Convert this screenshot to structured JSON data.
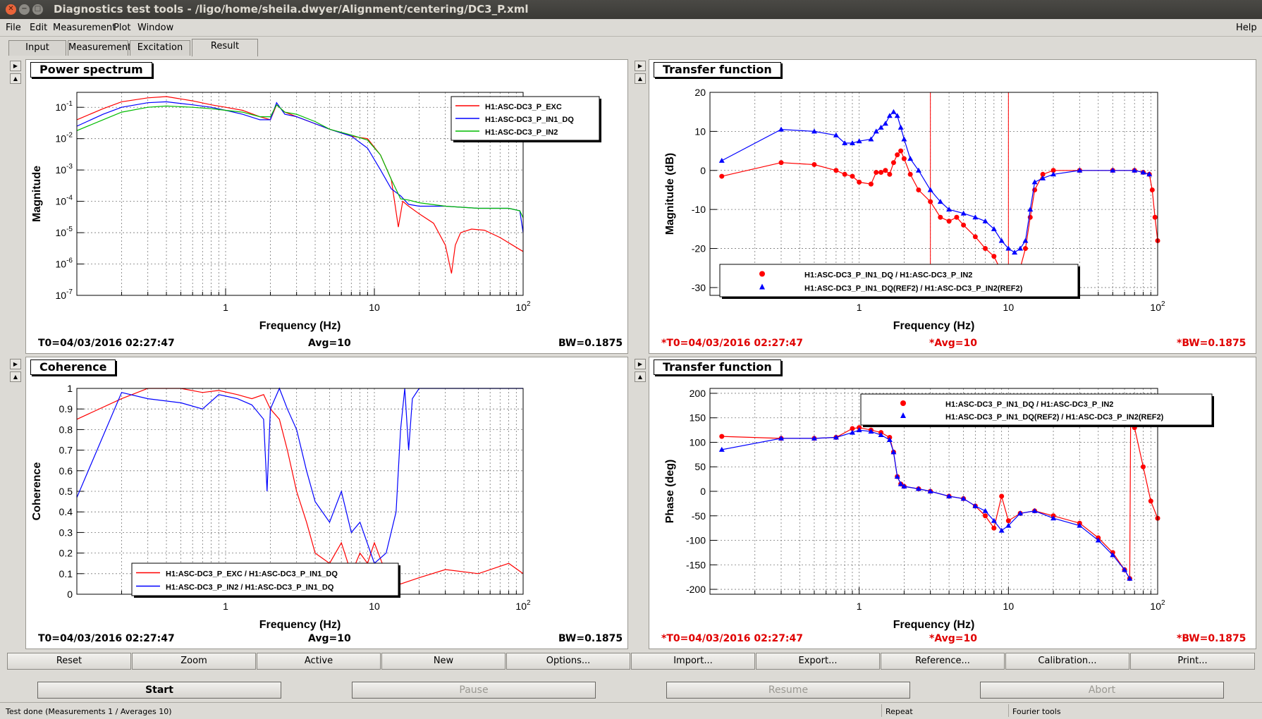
{
  "window": {
    "title": "Diagnostics test tools - /ligo/home/sheila.dwyer/Alignment/centering/DC3_P.xml"
  },
  "menu": {
    "file": "File",
    "edit": "Edit",
    "measurement": "Measurement",
    "plot": "Plot",
    "window": "Window",
    "help": "Help"
  },
  "tabs": [
    {
      "label": "Input",
      "active": false
    },
    {
      "label": "Measurement",
      "active": false
    },
    {
      "label": "Excitation",
      "active": false
    },
    {
      "label": "Result",
      "active": true
    }
  ],
  "panels": {
    "tl": {
      "title": "Power spectrum",
      "foot_t0": "T0=04/03/2016 02:27:47",
      "foot_avg": "Avg=10",
      "foot_bw": "BW=0.1875"
    },
    "tr": {
      "title": "Transfer function",
      "foot_t0": "*T0=04/03/2016 02:27:47",
      "foot_avg": "*Avg=10",
      "foot_bw": "*BW=0.1875"
    },
    "bl": {
      "title": "Coherence",
      "foot_t0": "T0=04/03/2016 02:27:47",
      "foot_avg": "Avg=10",
      "foot_bw": "BW=0.1875"
    },
    "br": {
      "title": "Transfer function",
      "foot_t0": "*T0=04/03/2016 02:27:47",
      "foot_avg": "*Avg=10",
      "foot_bw": "*BW=0.1875"
    }
  },
  "chart_data": [
    {
      "id": "tl",
      "type": "line",
      "xscale": "log",
      "yscale": "log",
      "xlim": [
        0.1,
        100
      ],
      "ylim": [
        1e-07,
        0.3
      ],
      "xlabel": "Frequency (Hz)",
      "ylabel": "Magnitude",
      "xtick_labels": [
        [
          "1",
          1
        ],
        [
          "10",
          10
        ],
        [
          "10^2",
          100
        ]
      ],
      "ytick_labels": [
        [
          "10^-7",
          1e-07
        ],
        [
          "10^-6",
          1e-06
        ],
        [
          "10^-5",
          1e-05
        ],
        [
          "10^-4",
          0.0001
        ],
        [
          "10^-3",
          0.001
        ],
        [
          "10^-2",
          0.01
        ],
        [
          "10^-1",
          0.1
        ]
      ],
      "legend": "top-right",
      "grid": true,
      "series": [
        {
          "name": "H1:ASC-DC3_P_EXC",
          "color": "#ff0000",
          "x": [
            0.1,
            0.15,
            0.2,
            0.3,
            0.4,
            0.6,
            0.8,
            1,
            1.3,
            1.7,
            2,
            2.2,
            2.5,
            3,
            4,
            5,
            7,
            9,
            11,
            13,
            14.5,
            15.5,
            17,
            20,
            25,
            30,
            33,
            35,
            38,
            45,
            55,
            70,
            85,
            100
          ],
          "y": [
            0.04,
            0.09,
            0.15,
            0.2,
            0.22,
            0.16,
            0.12,
            0.1,
            0.08,
            0.05,
            0.04,
            0.12,
            0.07,
            0.05,
            0.03,
            0.02,
            0.012,
            0.01,
            0.003,
            0.0005,
            1.5e-05,
            0.0001,
            7e-05,
            4e-05,
            2e-05,
            4e-06,
            5e-07,
            4e-06,
            1e-05,
            1.3e-05,
            1.2e-05,
            7e-06,
            4e-06,
            2.5e-06
          ]
        },
        {
          "name": "H1:ASC-DC3_P_IN1_DQ",
          "color": "#0000ff",
          "x": [
            0.1,
            0.15,
            0.2,
            0.3,
            0.4,
            0.6,
            0.8,
            1,
            1.3,
            1.7,
            2,
            2.2,
            2.5,
            3,
            4,
            5,
            7,
            9,
            11,
            13,
            15,
            17,
            20,
            30,
            50,
            80,
            95,
            100
          ],
          "y": [
            0.025,
            0.06,
            0.1,
            0.14,
            0.15,
            0.12,
            0.1,
            0.08,
            0.06,
            0.04,
            0.04,
            0.14,
            0.06,
            0.05,
            0.03,
            0.02,
            0.012,
            0.005,
            0.001,
            0.00025,
            0.00015,
            8e-05,
            7e-05,
            7e-05,
            6e-05,
            6e-05,
            5e-05,
            1e-05
          ]
        },
        {
          "name": "H1:ASC-DC3_P_IN2",
          "color": "#00bb00",
          "x": [
            0.1,
            0.15,
            0.2,
            0.3,
            0.4,
            0.6,
            0.8,
            1,
            1.3,
            1.7,
            2,
            2.2,
            2.5,
            3,
            4,
            5,
            7,
            9,
            11,
            13,
            15,
            17,
            20,
            30,
            50,
            80,
            95,
            100
          ],
          "y": [
            0.018,
            0.04,
            0.07,
            0.1,
            0.11,
            0.1,
            0.09,
            0.08,
            0.07,
            0.05,
            0.05,
            0.12,
            0.07,
            0.06,
            0.035,
            0.02,
            0.013,
            0.009,
            0.003,
            0.0005,
            0.00012,
            0.00011,
            9e-05,
            7e-05,
            6e-05,
            6e-05,
            5e-05,
            3e-05
          ]
        }
      ]
    },
    {
      "id": "tr",
      "type": "scatter",
      "xscale": "log",
      "yscale": "linear",
      "xlim": [
        0.1,
        100
      ],
      "ylim": [
        -32,
        20
      ],
      "xlabel": "Frequency (Hz)",
      "ylabel": "Magnitude (dB)",
      "xtick_labels": [
        [
          "1",
          1
        ],
        [
          "10",
          10
        ],
        [
          "10^2",
          100
        ]
      ],
      "ytick_labels": [
        [
          "20",
          20
        ],
        [
          "10",
          10
        ],
        [
          "0",
          0
        ],
        [
          "-10",
          -10
        ],
        [
          "-20",
          -20
        ],
        [
          "-30",
          -30
        ]
      ],
      "vlines": [
        3,
        10
      ],
      "legend": "bottom-center",
      "grid": true,
      "series": [
        {
          "name": "H1:ASC-DC3_P_IN1_DQ / H1:ASC-DC3_P_IN2",
          "color": "#ff0000",
          "marker": "circle",
          "x": [
            0.12,
            0.3,
            0.5,
            0.7,
            0.8,
            0.9,
            1.0,
            1.2,
            1.3,
            1.4,
            1.5,
            1.6,
            1.7,
            1.8,
            1.9,
            2.0,
            2.2,
            2.5,
            3.0,
            3.5,
            4.0,
            4.5,
            5,
            6,
            7,
            8,
            9,
            10,
            11,
            12,
            13,
            14,
            15,
            17,
            20,
            30,
            50,
            70,
            80,
            88,
            92,
            96,
            100
          ],
          "y": [
            -1.5,
            2,
            1.5,
            0,
            -1,
            -1.5,
            -3,
            -3.5,
            -0.5,
            -0.5,
            0,
            -1,
            2,
            4,
            5,
            3,
            -1,
            -5,
            -8,
            -12,
            -13,
            -12,
            -14,
            -17,
            -20,
            -22,
            -26,
            -27,
            -26,
            -25,
            -20,
            -12,
            -5,
            -1,
            0,
            0,
            0,
            0,
            -0.5,
            -1,
            -5,
            -12,
            -18
          ]
        },
        {
          "name": "H1:ASC-DC3_P_IN1_DQ(REF2) / H1:ASC-DC3_P_IN2(REF2)",
          "color": "#0000ff",
          "marker": "triangle",
          "x": [
            0.12,
            0.3,
            0.5,
            0.7,
            0.8,
            0.9,
            1.0,
            1.2,
            1.3,
            1.4,
            1.5,
            1.6,
            1.7,
            1.8,
            1.9,
            2.0,
            2.2,
            2.5,
            3.0,
            3.5,
            4.0,
            5,
            6,
            7,
            8,
            9,
            10,
            11,
            12,
            13,
            14,
            15,
            17,
            20,
            30,
            50,
            70,
            80,
            88
          ],
          "y": [
            2.5,
            10.5,
            10,
            9,
            7,
            7,
            7.5,
            8,
            10,
            11,
            12,
            14,
            15,
            14,
            11,
            8,
            3,
            0,
            -5,
            -8,
            -10,
            -11,
            -12,
            -13,
            -15,
            -18,
            -20,
            -21,
            -20,
            -18,
            -10,
            -3,
            -2,
            -1,
            0,
            0,
            0,
            -0.5,
            -1
          ]
        }
      ]
    },
    {
      "id": "bl",
      "type": "line",
      "xscale": "log",
      "yscale": "linear",
      "xlim": [
        0.1,
        100
      ],
      "ylim": [
        0,
        1
      ],
      "xlabel": "Frequency (Hz)",
      "ylabel": "Coherence",
      "xtick_labels": [
        [
          "1",
          1
        ],
        [
          "10",
          10
        ],
        [
          "10^2",
          100
        ]
      ],
      "ytick_labels": [
        [
          "0",
          0
        ],
        [
          "0.1",
          0.1
        ],
        [
          "0.2",
          0.2
        ],
        [
          "0.3",
          0.3
        ],
        [
          "0.4",
          0.4
        ],
        [
          "0.5",
          0.5
        ],
        [
          "0.6",
          0.6
        ],
        [
          "0.7",
          0.7
        ],
        [
          "0.8",
          0.8
        ],
        [
          "0.9",
          0.9
        ],
        [
          "1",
          1
        ]
      ],
      "legend": "bottom-center",
      "grid": true,
      "series": [
        {
          "name": "H1:ASC-DC3_P_EXC / H1:ASC-DC3_P_IN1_DQ",
          "color": "#ff0000",
          "x": [
            0.1,
            0.2,
            0.3,
            0.5,
            0.7,
            0.9,
            1.2,
            1.5,
            1.8,
            2.0,
            2.3,
            2.6,
            3.0,
            3.5,
            4,
            5,
            6,
            7,
            8,
            9,
            10,
            12,
            15,
            20,
            30,
            50,
            80,
            100
          ],
          "y": [
            0.85,
            0.95,
            1.0,
            1.0,
            0.98,
            0.99,
            0.97,
            0.95,
            0.97,
            0.9,
            0.85,
            0.7,
            0.5,
            0.35,
            0.2,
            0.15,
            0.25,
            0.1,
            0.2,
            0.15,
            0.25,
            0.1,
            0.05,
            0.08,
            0.12,
            0.1,
            0.15,
            0.1
          ]
        },
        {
          "name": "H1:ASC-DC3_P_IN2 / H1:ASC-DC3_P_IN1_DQ",
          "color": "#0000ff",
          "x": [
            0.1,
            0.2,
            0.3,
            0.5,
            0.7,
            0.9,
            1.2,
            1.5,
            1.8,
            1.9,
            2.0,
            2.3,
            2.6,
            3.0,
            3.5,
            4,
            5,
            6,
            7,
            8,
            10,
            12,
            14,
            15,
            16,
            17,
            18,
            20,
            25,
            30,
            50,
            80,
            100
          ],
          "y": [
            0.47,
            0.98,
            0.95,
            0.93,
            0.9,
            0.97,
            0.95,
            0.92,
            0.85,
            0.5,
            0.9,
            1.0,
            0.9,
            0.8,
            0.6,
            0.45,
            0.35,
            0.5,
            0.3,
            0.35,
            0.15,
            0.2,
            0.4,
            0.8,
            1.0,
            0.7,
            0.95,
            1.0,
            1.0,
            1.0,
            1.0,
            1.0,
            1.0
          ]
        }
      ]
    },
    {
      "id": "br",
      "type": "scatter",
      "xscale": "log",
      "yscale": "linear",
      "xlim": [
        0.1,
        100
      ],
      "ylim": [
        -210,
        210
      ],
      "xlabel": "Frequency (Hz)",
      "ylabel": "Phase (deg)",
      "xtick_labels": [
        [
          "1",
          1
        ],
        [
          "10",
          10
        ],
        [
          "10^2",
          100
        ]
      ],
      "ytick_labels": [
        [
          "200",
          200
        ],
        [
          "150",
          150
        ],
        [
          "100",
          100
        ],
        [
          "50",
          50
        ],
        [
          "0",
          0
        ],
        [
          "-50",
          -50
        ],
        [
          "-100",
          -100
        ],
        [
          "-150",
          -150
        ],
        [
          "-200",
          -200
        ]
      ],
      "legend": "top-right",
      "grid": true,
      "series": [
        {
          "name": "H1:ASC-DC3_P_IN1_DQ / H1:ASC-DC3_P_IN2",
          "color": "#ff0000",
          "marker": "circle",
          "x": [
            0.12,
            0.3,
            0.5,
            0.7,
            0.9,
            1.0,
            1.2,
            1.4,
            1.6,
            1.7,
            1.8,
            1.9,
            2.0,
            2.5,
            3,
            4,
            5,
            6,
            7,
            8,
            9,
            10,
            12,
            15,
            20,
            30,
            40,
            50,
            60,
            65,
            66,
            70,
            80,
            90,
            100
          ],
          "y": [
            112,
            108,
            108,
            110,
            128,
            130,
            125,
            120,
            110,
            80,
            30,
            15,
            10,
            5,
            0,
            -10,
            -15,
            -30,
            -50,
            -75,
            -10,
            -60,
            -45,
            -40,
            -50,
            -65,
            -95,
            -125,
            -160,
            -178,
            180,
            130,
            50,
            -20,
            -55
          ]
        },
        {
          "name": "H1:ASC-DC3_P_IN1_DQ(REF2) / H1:ASC-DC3_P_IN2(REF2)",
          "color": "#0000ff",
          "marker": "triangle",
          "x": [
            0.12,
            0.3,
            0.5,
            0.7,
            0.9,
            1.0,
            1.2,
            1.4,
            1.6,
            1.7,
            1.8,
            1.9,
            2.0,
            2.5,
            3,
            4,
            5,
            6,
            7,
            8,
            9,
            10,
            12,
            15,
            20,
            30,
            40,
            50,
            60,
            65
          ],
          "y": [
            85,
            108,
            108,
            110,
            120,
            125,
            122,
            115,
            105,
            80,
            30,
            15,
            10,
            5,
            0,
            -10,
            -15,
            -30,
            -40,
            -60,
            -80,
            -70,
            -45,
            -40,
            -55,
            -70,
            -100,
            -130,
            -160,
            -178
          ]
        }
      ]
    }
  ],
  "toolbar": {
    "reset": "Reset",
    "zoom": "Zoom",
    "active": "Active",
    "new": "New",
    "options": "Options...",
    "import": "Import...",
    "export": "Export...",
    "reference": "Reference...",
    "calibration": "Calibration...",
    "print": "Print..."
  },
  "actions": {
    "start": "Start",
    "pause": "Pause",
    "resume": "Resume",
    "abort": "Abort"
  },
  "status": {
    "message": "Test done (Measurements 1 / Averages 10)",
    "mode": "Repeat",
    "tools": "Fourier tools"
  }
}
